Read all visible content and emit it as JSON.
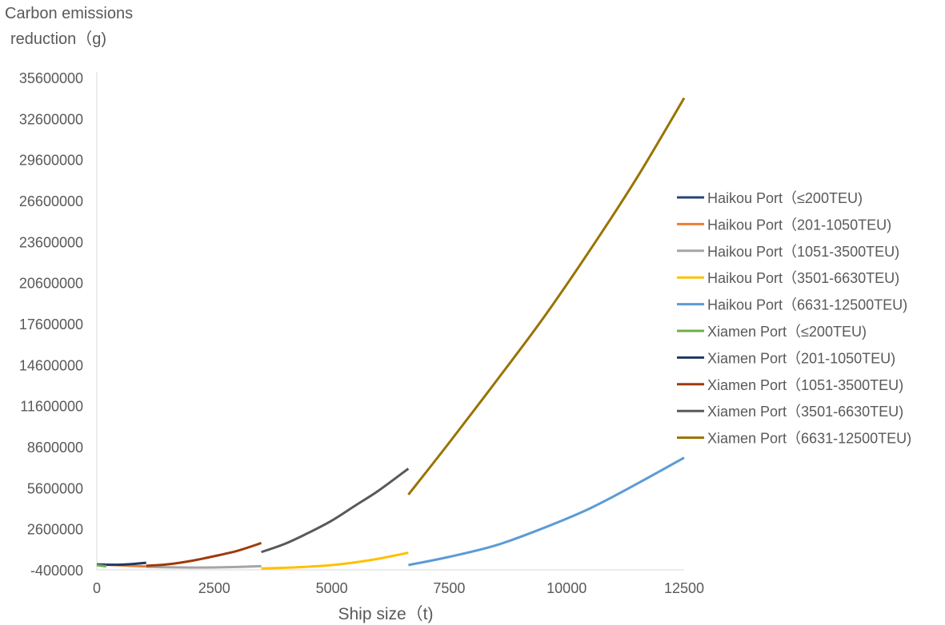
{
  "chart_data": {
    "type": "line",
    "ylabel": [
      "Carbon emissions",
      "reduction（g)"
    ],
    "xlabel": "Ship size（t)",
    "xlim": [
      0,
      12500
    ],
    "ylim": [
      -400000,
      35600000
    ],
    "x_ticks": [
      0,
      2500,
      5000,
      7500,
      10000,
      12500
    ],
    "y_ticks": [
      -400000,
      2600000,
      5600000,
      8600000,
      11600000,
      14600000,
      17600000,
      20600000,
      23600000,
      26600000,
      29600000,
      32600000,
      35600000
    ],
    "grid": false,
    "legend_position": "right",
    "series": [
      {
        "name": "Haikou Port（≤200TEU)",
        "color": "#264478",
        "x": [
          0,
          100,
          200
        ],
        "y": [
          0,
          -4000,
          -10000
        ]
      },
      {
        "name": "Haikou Port（201-1050TEU)",
        "color": "#ED7D31",
        "x": [
          201,
          450,
          700,
          1050
        ],
        "y": [
          -20000,
          -60000,
          -100000,
          -150000
        ]
      },
      {
        "name": "Haikou Port（1051-3500TEU)",
        "color": "#A5A5A5",
        "x": [
          1051,
          1500,
          2000,
          2500,
          3000,
          3500
        ],
        "y": [
          -180000,
          -210000,
          -230000,
          -225000,
          -190000,
          -130000
        ]
      },
      {
        "name": "Haikou Port（3501-6630TEU)",
        "color": "#FFC000",
        "x": [
          3501,
          4000,
          4500,
          5000,
          5500,
          6000,
          6630
        ],
        "y": [
          -300000,
          -250000,
          -170000,
          -50000,
          150000,
          420000,
          850000
        ]
      },
      {
        "name": "Haikou Port（6631-12500TEU)",
        "color": "#5B9BD5",
        "x": [
          6631,
          7500,
          8500,
          9500,
          10500,
          11500,
          12500
        ],
        "y": [
          -50000,
          550000,
          1400000,
          2650000,
          4100000,
          5900000,
          7800000
        ]
      },
      {
        "name": "Xiamen Port（≤200TEU)",
        "color": "#70AD47",
        "x": [
          0,
          100,
          200
        ],
        "y": [
          -60000,
          -100000,
          -150000
        ]
      },
      {
        "name": "Xiamen Port（201-1050TEU)",
        "color": "#1F3864",
        "x": [
          201,
          500,
          800,
          1050
        ],
        "y": [
          -30000,
          -20000,
          40000,
          120000
        ]
      },
      {
        "name": "Xiamen Port（1051-3500TEU)",
        "color": "#9E3A0B",
        "x": [
          1051,
          1500,
          2000,
          2500,
          3000,
          3500
        ],
        "y": [
          -100000,
          0,
          250000,
          600000,
          1000000,
          1560000
        ]
      },
      {
        "name": "Xiamen Port（3501-6630TEU)",
        "color": "#595959",
        "x": [
          3501,
          4000,
          4500,
          5000,
          5500,
          6000,
          6630
        ],
        "y": [
          900000,
          1500000,
          2300000,
          3200000,
          4300000,
          5400000,
          7000000
        ]
      },
      {
        "name": "Xiamen Port（6631-12500TEU)",
        "color": "#997300",
        "x": [
          6631,
          7500,
          8500,
          9500,
          10500,
          11500,
          12500
        ],
        "y": [
          5100000,
          8900000,
          13400000,
          18000000,
          23000000,
          28300000,
          34100000
        ]
      }
    ]
  }
}
